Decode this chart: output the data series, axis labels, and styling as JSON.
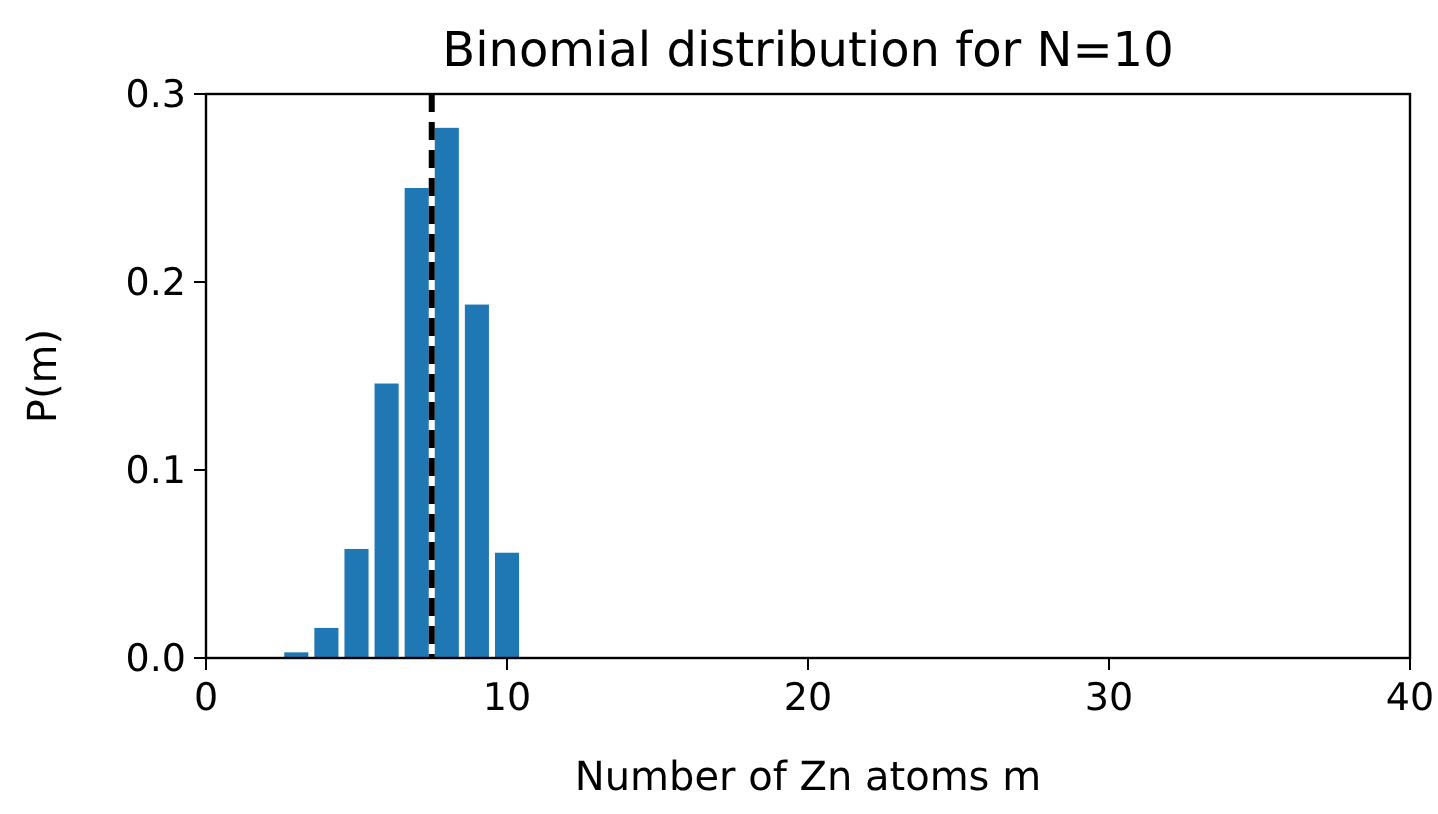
{
  "chart_data": {
    "type": "bar",
    "title": "Binomial distribution for N=10",
    "xlabel": "Number of Zn atoms m",
    "ylabel": "P(m)",
    "x": [
      3,
      4,
      5,
      6,
      7,
      8,
      9,
      10
    ],
    "series": [
      {
        "color": "#1f77b4",
        "values": [
          0.003,
          0.016,
          0.058,
          0.146,
          0.25,
          0.282,
          0.188,
          0.056
        ]
      }
    ],
    "xlim": [
      0,
      40
    ],
    "xticks": [
      0,
      10,
      20,
      30,
      40
    ],
    "ylim": [
      0,
      0.3
    ],
    "yticks": [
      {
        "value": 0,
        "label": "0.0"
      },
      {
        "value": 0.1,
        "label": "0.1"
      },
      {
        "value": 0.2,
        "label": "0.2"
      },
      {
        "value": 0.3,
        "label": "0.3"
      }
    ],
    "ref_lines": [
      {
        "axis": "x",
        "value": 7.5,
        "color": "#000000",
        "line_style": "dashed"
      }
    ],
    "grid": false
  }
}
